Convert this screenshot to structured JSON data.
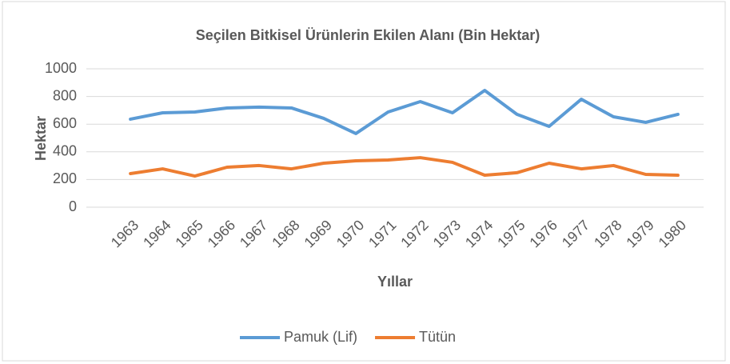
{
  "chart_data": {
    "type": "line",
    "title": "Seçilen Bitkisel Ürünlerin Ekilen Alanı (Bin Hektar)",
    "x_label": "Yıllar",
    "y_label": "Hektar",
    "categories": [
      "1963",
      "1964",
      "1965",
      "1966",
      "1967",
      "1968",
      "1969",
      "1970",
      "1971",
      "1972",
      "1973",
      "1974",
      "1975",
      "1976",
      "1977",
      "1978",
      "1979",
      "1980"
    ],
    "series": [
      {
        "name": "Pamuk (Lif)",
        "color": "#5b9bd5",
        "values": [
          636,
          682,
          688,
          717,
          723,
          717,
          642,
          532,
          688,
          763,
          682,
          844,
          671,
          584,
          780,
          653,
          613,
          671
        ]
      },
      {
        "name": "Tütün",
        "color": "#ed7d31",
        "values": [
          243,
          277,
          225,
          289,
          301,
          277,
          318,
          335,
          341,
          358,
          324,
          231,
          249,
          318,
          277,
          301,
          237,
          231
        ]
      }
    ],
    "ylim": [
      0,
      1000
    ],
    "yticks": [
      0,
      200,
      400,
      600,
      800,
      1000
    ],
    "grid": true,
    "legend": "bottom"
  }
}
